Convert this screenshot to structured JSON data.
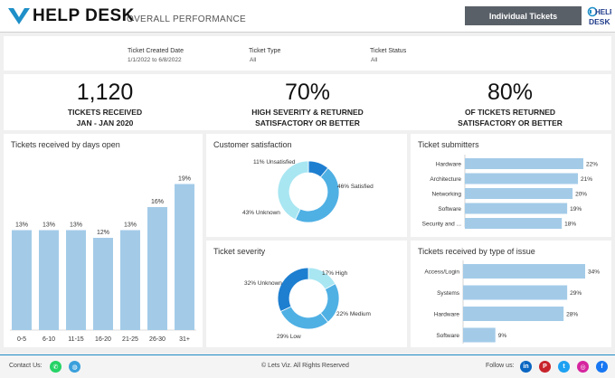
{
  "header": {
    "brand": "HELP DESK",
    "subtitle": "OVERALL PERFORMANCE",
    "nav_button": "Individual Tickets",
    "logo_text_top": "HELP",
    "logo_text_bottom": "DESK"
  },
  "filters": [
    {
      "label": "Ticket Created Date",
      "value": "1/1/2022 to 6/8/2022"
    },
    {
      "label": "Ticket Type",
      "value": "All"
    },
    {
      "label": "Ticket Status",
      "value": "All"
    }
  ],
  "kpis": [
    {
      "value": "1,120",
      "line1": "TICKETS RECEIVED",
      "line2": "JAN - JAN 2020"
    },
    {
      "value": "70%",
      "line1": "HIGH SEVERITY & RETURNED",
      "line2": "SATISFACTORY OR BETTER"
    },
    {
      "value": "80%",
      "line1": "OF TICKETS RETURNED",
      "line2": "SATISFACTORY OR BETTER"
    }
  ],
  "colors": {
    "bar": "#a3cbe8",
    "donut_dark": "#1e7fd0",
    "donut_mid": "#4fb0e4",
    "donut_light": "#a8e6f2",
    "accent_line": "#1f8fc8"
  },
  "chart_data": [
    {
      "type": "bar",
      "title": "Tickets received by days open",
      "categories": [
        "0-5",
        "6-10",
        "11-15",
        "16-20",
        "21-25",
        "26-30",
        "31+"
      ],
      "values": [
        13,
        13,
        13,
        12,
        13,
        16,
        19
      ],
      "value_labels": [
        "13%",
        "13%",
        "13%",
        "12%",
        "13%",
        "16%",
        "19%"
      ],
      "ylim": [
        0,
        20
      ]
    },
    {
      "type": "pie",
      "title": "Customer satisfaction",
      "labels": [
        "11% Unsatisfied",
        "46% Satisfied",
        "43% Unknown"
      ],
      "values": [
        11,
        46,
        43
      ]
    },
    {
      "type": "pie",
      "title": "Ticket severity",
      "labels": [
        "17% High",
        "22% Medium",
        "29% Low",
        "32% Unknown"
      ],
      "values": [
        17,
        22,
        29,
        32
      ]
    },
    {
      "type": "bar",
      "title": "Ticket submitters",
      "categories": [
        "Hardware",
        "Architecture",
        "Networking",
        "Software",
        "Security and ..."
      ],
      "values": [
        22,
        21,
        20,
        19,
        18
      ],
      "value_labels": [
        "22%",
        "21%",
        "20%",
        "19%",
        "18%"
      ],
      "xlim": [
        0,
        22
      ]
    },
    {
      "type": "bar",
      "title": "Tickets received by type of issue",
      "categories": [
        "Access/Login",
        "Systems",
        "Hardware",
        "Software"
      ],
      "values": [
        34,
        29,
        28,
        9
      ],
      "value_labels": [
        "34%",
        "29%",
        "28%",
        "9%"
      ],
      "xlim": [
        0,
        34
      ]
    }
  ],
  "footer": {
    "contact": "Contact Us:",
    "copyright": "© Lets Viz. All Rights Reserved",
    "follow": "Follow us:",
    "social": [
      {
        "name": "linkedin-icon",
        "glyph": "in",
        "color": "#0a66c2"
      },
      {
        "name": "pinterest-icon",
        "glyph": "P",
        "color": "#c8232c"
      },
      {
        "name": "twitter-icon",
        "glyph": "t",
        "color": "#1da1f2"
      },
      {
        "name": "instagram-icon",
        "glyph": "◎",
        "color": "#d6249f"
      },
      {
        "name": "facebook-icon",
        "glyph": "f",
        "color": "#1877f2"
      }
    ]
  }
}
